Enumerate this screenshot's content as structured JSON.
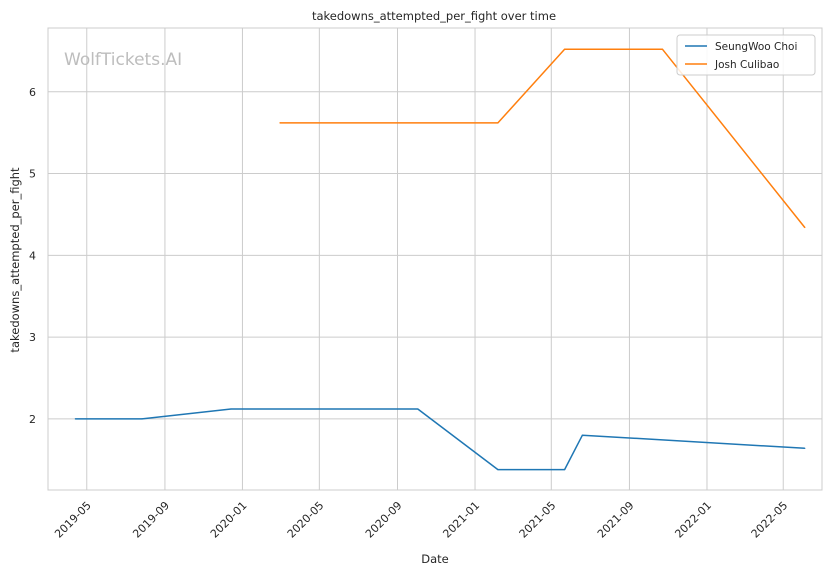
{
  "chart_data": {
    "type": "line",
    "title": "takedowns_attempted_per_fight over time",
    "xlabel": "Date",
    "ylabel": "takedowns_attempted_per_fight",
    "watermark": "WolfTickets.AI",
    "xlim": [
      "2019-03-01",
      "2022-07-01"
    ],
    "ylim": [
      1.13,
      6.78
    ],
    "yticks": [
      2,
      3,
      4,
      5,
      6
    ],
    "xticks": [
      "2019-05",
      "2019-09",
      "2020-01",
      "2020-05",
      "2020-09",
      "2021-01",
      "2021-05",
      "2021-09",
      "2022-01",
      "2022-05"
    ],
    "grid": true,
    "legend_position": "top-right",
    "series": [
      {
        "name": "SeungWoo Choi",
        "color": "#1f77b4",
        "points": [
          {
            "x": "2019-04-13",
            "y": 2.0
          },
          {
            "x": "2019-07-27",
            "y": 2.0
          },
          {
            "x": "2019-12-14",
            "y": 2.12
          },
          {
            "x": "2020-10-03",
            "y": 2.12
          },
          {
            "x": "2021-02-06",
            "y": 1.38
          },
          {
            "x": "2021-05-22",
            "y": 1.38
          },
          {
            "x": "2021-06-19",
            "y": 1.8
          },
          {
            "x": "2022-06-04",
            "y": 1.64
          }
        ]
      },
      {
        "name": "Josh Culibao",
        "color": "#ff7f0e",
        "points": [
          {
            "x": "2020-02-29",
            "y": 5.62
          },
          {
            "x": "2021-02-06",
            "y": 5.62
          },
          {
            "x": "2021-05-22",
            "y": 6.52
          },
          {
            "x": "2021-10-23",
            "y": 6.52
          },
          {
            "x": "2022-06-04",
            "y": 4.34
          }
        ]
      }
    ]
  }
}
